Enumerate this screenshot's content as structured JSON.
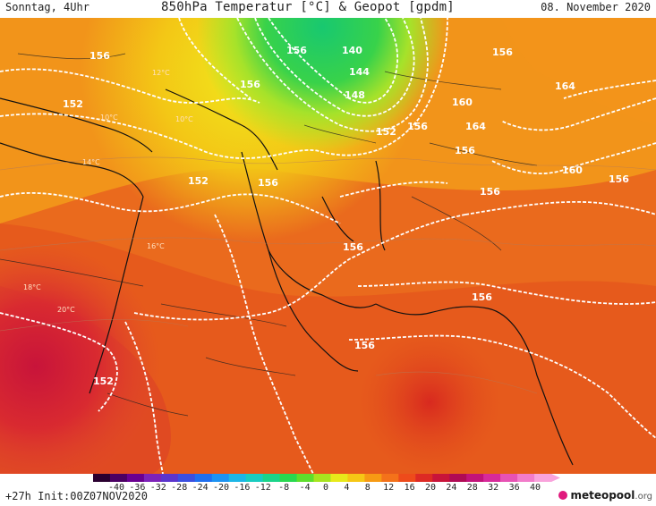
{
  "header": {
    "left": "Sonntag, 4Uhr",
    "title": "850hPa Temperatur [°C] & Geopot [gpdm]",
    "right": "08. November 2020"
  },
  "footer": {
    "init": "+27h  Init:00Z07NOV2020",
    "logo_name": "meteopool",
    "logo_tld": ".org"
  },
  "legend": {
    "ticks": [
      "-40",
      "-36",
      "-32",
      "-28",
      "-24",
      "-20",
      "-16",
      "-12",
      "-8",
      "-4",
      "0",
      "4",
      "8",
      "12",
      "16",
      "20",
      "24",
      "28",
      "32",
      "36",
      "40"
    ],
    "colors": [
      "#2a0030",
      "#4b0063",
      "#6a0090",
      "#7d22b8",
      "#5b35cc",
      "#3b4fe0",
      "#1f6ff0",
      "#1c93f2",
      "#1cb6e6",
      "#19ccc0",
      "#1bd48a",
      "#29d84f",
      "#5ede2c",
      "#a8e41f",
      "#e8ea1a",
      "#f6c715",
      "#f79a14",
      "#f4721a",
      "#ee4b1b",
      "#dd2a24",
      "#c8143a",
      "#b00b55",
      "#c2137a",
      "#d72a9a",
      "#e752b4",
      "#f27cca",
      "#f9a3dc"
    ]
  },
  "map": {
    "contour_labels": [
      "156",
      "156",
      "152",
      "156",
      "140",
      "144",
      "148",
      "152",
      "156",
      "160",
      "164",
      "156",
      "164",
      "160",
      "156",
      "156",
      "152",
      "156",
      "156",
      "156",
      "156",
      "156",
      "152"
    ],
    "temp_labels": [
      "12°C",
      "10°C",
      "10°C",
      "16°C",
      "14°C",
      "18°C",
      "20°C"
    ]
  }
}
